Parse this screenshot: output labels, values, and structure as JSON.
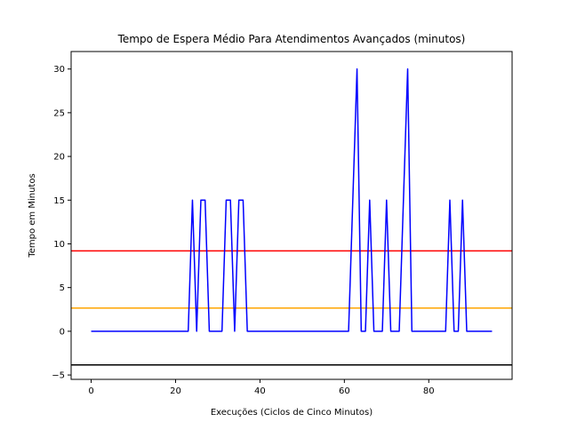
{
  "chart_data": {
    "type": "line",
    "title": "Tempo de Espera Médio Para Atendimentos Avançados (minutos)",
    "xlabel": "Execuções (Ciclos de Cinco Minutos)",
    "ylabel": "Tempo em Minutos",
    "xlim": [
      -4.75,
      99.75
    ],
    "ylim": [
      -5.5,
      32
    ],
    "xticks": [
      0,
      20,
      40,
      60,
      80
    ],
    "yticks": [
      -5,
      0,
      5,
      10,
      15,
      20,
      25,
      30
    ],
    "xtick_labels": [
      "0",
      "20",
      "40",
      "60",
      "80"
    ],
    "ytick_labels": [
      "−5",
      "0",
      "5",
      "10",
      "15",
      "20",
      "25",
      "30"
    ],
    "grid": false,
    "series": [
      {
        "color": "#0000ff",
        "x": [
          0,
          1,
          2,
          3,
          4,
          5,
          6,
          7,
          8,
          9,
          10,
          11,
          12,
          13,
          14,
          15,
          16,
          17,
          18,
          19,
          20,
          21,
          22,
          23,
          24,
          25,
          26,
          27,
          28,
          29,
          30,
          31,
          32,
          33,
          34,
          35,
          36,
          37,
          38,
          39,
          40,
          41,
          42,
          43,
          44,
          45,
          46,
          47,
          48,
          49,
          50,
          51,
          52,
          53,
          54,
          55,
          56,
          57,
          58,
          59,
          60,
          61,
          62,
          63,
          64,
          65,
          66,
          67,
          68,
          69,
          70,
          71,
          72,
          73,
          74,
          75,
          76,
          77,
          78,
          79,
          80,
          81,
          82,
          83,
          84,
          85,
          86,
          87,
          88,
          89,
          90,
          91,
          92,
          93,
          94,
          95
        ],
        "y": [
          0,
          0,
          0,
          0,
          0,
          0,
          0,
          0,
          0,
          0,
          0,
          0,
          0,
          0,
          0,
          0,
          0,
          0,
          0,
          0,
          0,
          0,
          0,
          0,
          15,
          0,
          15,
          15,
          0,
          0,
          0,
          0,
          15,
          15,
          0,
          15,
          15,
          0,
          0,
          0,
          0,
          0,
          0,
          0,
          0,
          0,
          0,
          0,
          0,
          0,
          0,
          0,
          0,
          0,
          0,
          0,
          0,
          0,
          0,
          0,
          0,
          0,
          15,
          30,
          0,
          0,
          15,
          0,
          0,
          0,
          15,
          0,
          0,
          0,
          15,
          30,
          0,
          0,
          0,
          0,
          0,
          0,
          0,
          0,
          0,
          15,
          0,
          0,
          15,
          0,
          0,
          0,
          0,
          0,
          0,
          0
        ]
      }
    ],
    "hlines": [
      {
        "y": 9.2,
        "color": "#ff0000"
      },
      {
        "y": 2.65,
        "color": "#ffa500"
      },
      {
        "y": -3.85,
        "color": "#000000"
      }
    ]
  }
}
